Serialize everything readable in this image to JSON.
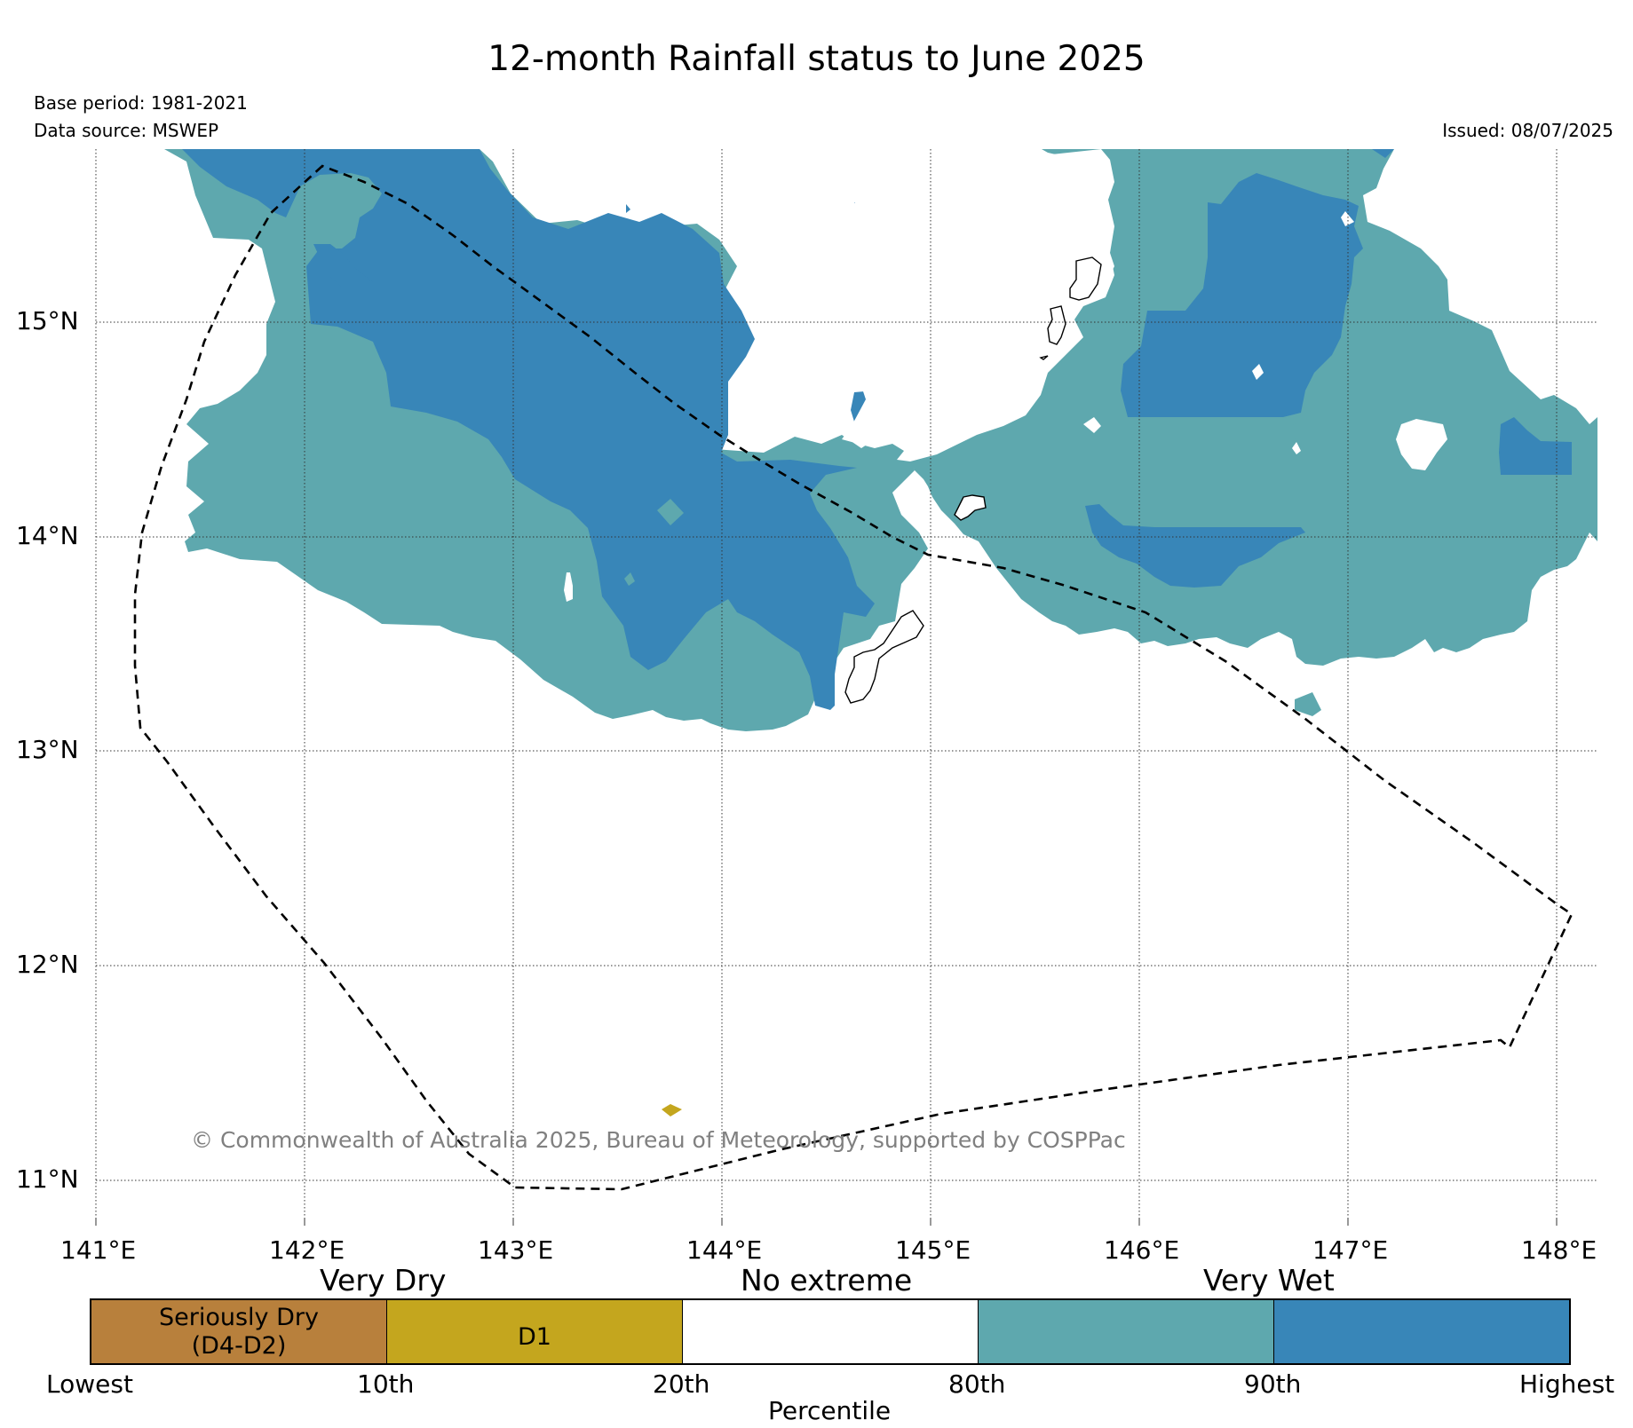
{
  "title": "12-month Rainfall status to June 2025",
  "base_period": "Base period: 1981-2021",
  "data_source": "Data source: MSWEP",
  "issued": "Issued: 08/07/2025",
  "copyright": "© Commonwealth of Australia 2025, Bureau of Meteorology, supported by COSPPac",
  "axes": {
    "lat_labels": [
      "15°N",
      "14°N",
      "13°N",
      "12°N",
      "11°N"
    ],
    "lon_labels": [
      "141°E",
      "142°E",
      "143°E",
      "144°E",
      "145°E",
      "146°E",
      "147°E",
      "148°E"
    ]
  },
  "colors": {
    "seriously_dry": "#b8803c",
    "d1": "#c4a61e",
    "no_extreme": "#ffffff",
    "wet_80_90": "#5ea8ae",
    "wet_90_high": "#3886b8",
    "copyright": "#808080"
  },
  "legend": {
    "categories": [
      "Very Dry",
      "No extreme",
      "Very Wet"
    ],
    "boxes": [
      "Seriously Dry\n(D4-D2)",
      "D1",
      "",
      "",
      ""
    ],
    "percentiles": [
      "Lowest",
      "10th",
      "20th",
      "80th",
      "90th",
      "Highest"
    ],
    "xlabel": "Percentile"
  }
}
